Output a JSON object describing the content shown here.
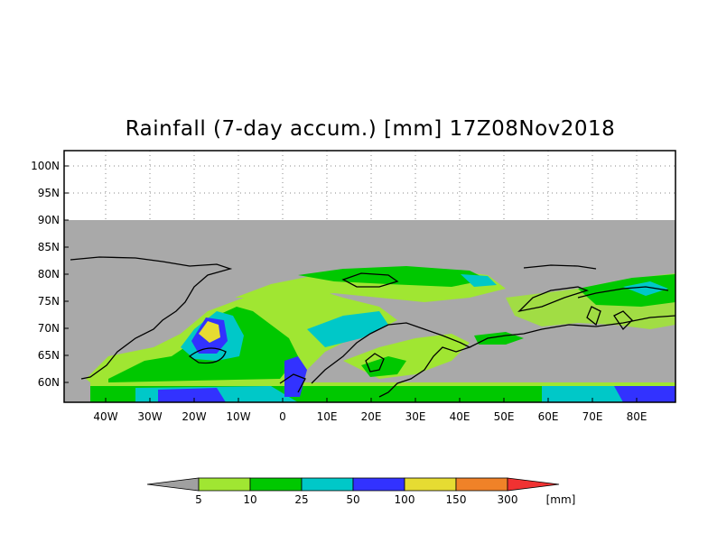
{
  "title": "Rainfall (7-day accum.) [mm] 17Z08Nov2018",
  "lat_labels": [
    "100N",
    "95N",
    "90N",
    "85N",
    "80N",
    "75N",
    "70N",
    "65N",
    "60N"
  ],
  "lon_labels": [
    "40W",
    "30W",
    "20W",
    "10W",
    "0",
    "10E",
    "20E",
    "30E",
    "40E",
    "50E",
    "60E",
    "70E",
    "80E"
  ],
  "colorbar": {
    "values": [
      "5",
      "10",
      "25",
      "50",
      "100",
      "150",
      "300"
    ],
    "unit": "[mm]",
    "colors": [
      "#a0a0a0",
      "#a0e632",
      "#00c800",
      "#00c8c8",
      "#3232ff",
      "#e6dc32",
      "#f08228",
      "#f03232"
    ]
  },
  "colors": {
    "nodata": "#a9a9a9",
    "land_outline": "#000000",
    "grid": "#888888"
  }
}
